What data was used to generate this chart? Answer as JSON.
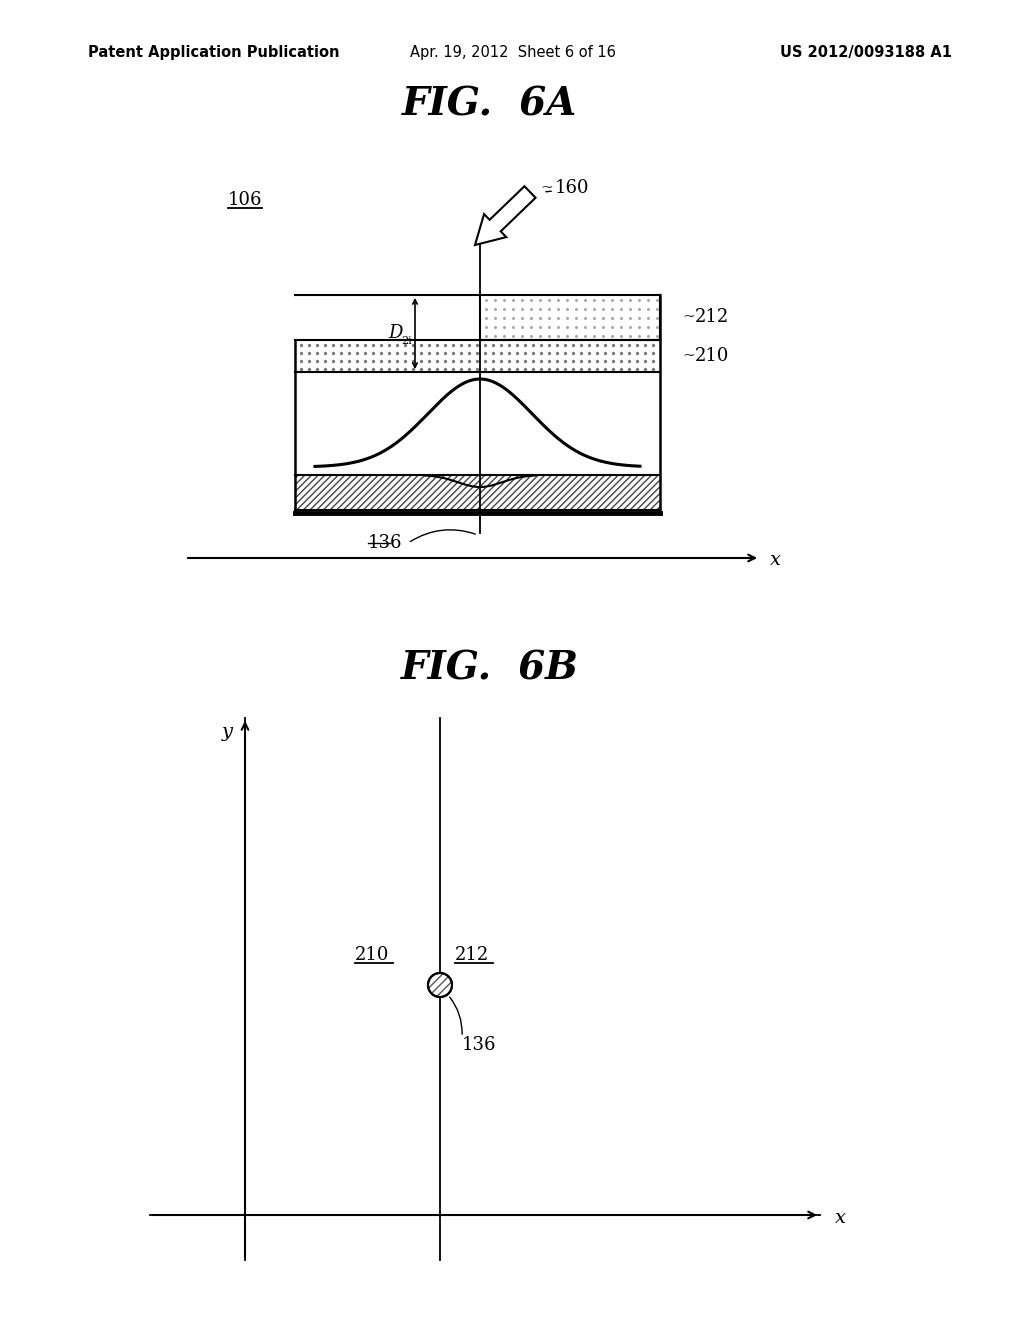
{
  "bg_color": "#ffffff",
  "header_left": "Patent Application Publication",
  "header_mid": "Apr. 19, 2012  Sheet 6 of 16",
  "header_right": "US 2012/0093188 A1",
  "fig6a_title": "FIG.  6A",
  "fig6b_title": "FIG.  6B",
  "label_106": "106",
  "label_160": "160",
  "label_212_6a": "212",
  "label_210_6a": "210",
  "label_136_6a": "136",
  "label_210_6b": "210",
  "label_212_6b": "212",
  "label_136_6b": "136",
  "line_color": "#000000"
}
